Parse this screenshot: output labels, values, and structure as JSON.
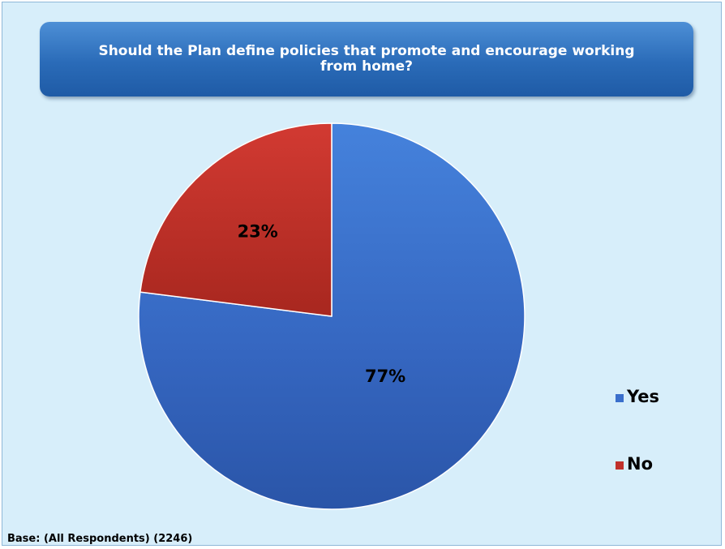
{
  "chart_data": {
    "type": "pie",
    "title": "Should the Plan define policies that promote and encourage working from home?",
    "categories": [
      "Yes",
      "No"
    ],
    "values": [
      77,
      23
    ],
    "value_labels": [
      "77%",
      "23%"
    ],
    "colors": [
      "#3a6fcc",
      "#c0312b"
    ],
    "legend_position": "right"
  },
  "legend": {
    "items": [
      {
        "label": "Yes",
        "color": "#3a6fcc"
      },
      {
        "label": "No",
        "color": "#c0312b"
      }
    ]
  },
  "footnote": "Base: (All Respondents) (2246)"
}
